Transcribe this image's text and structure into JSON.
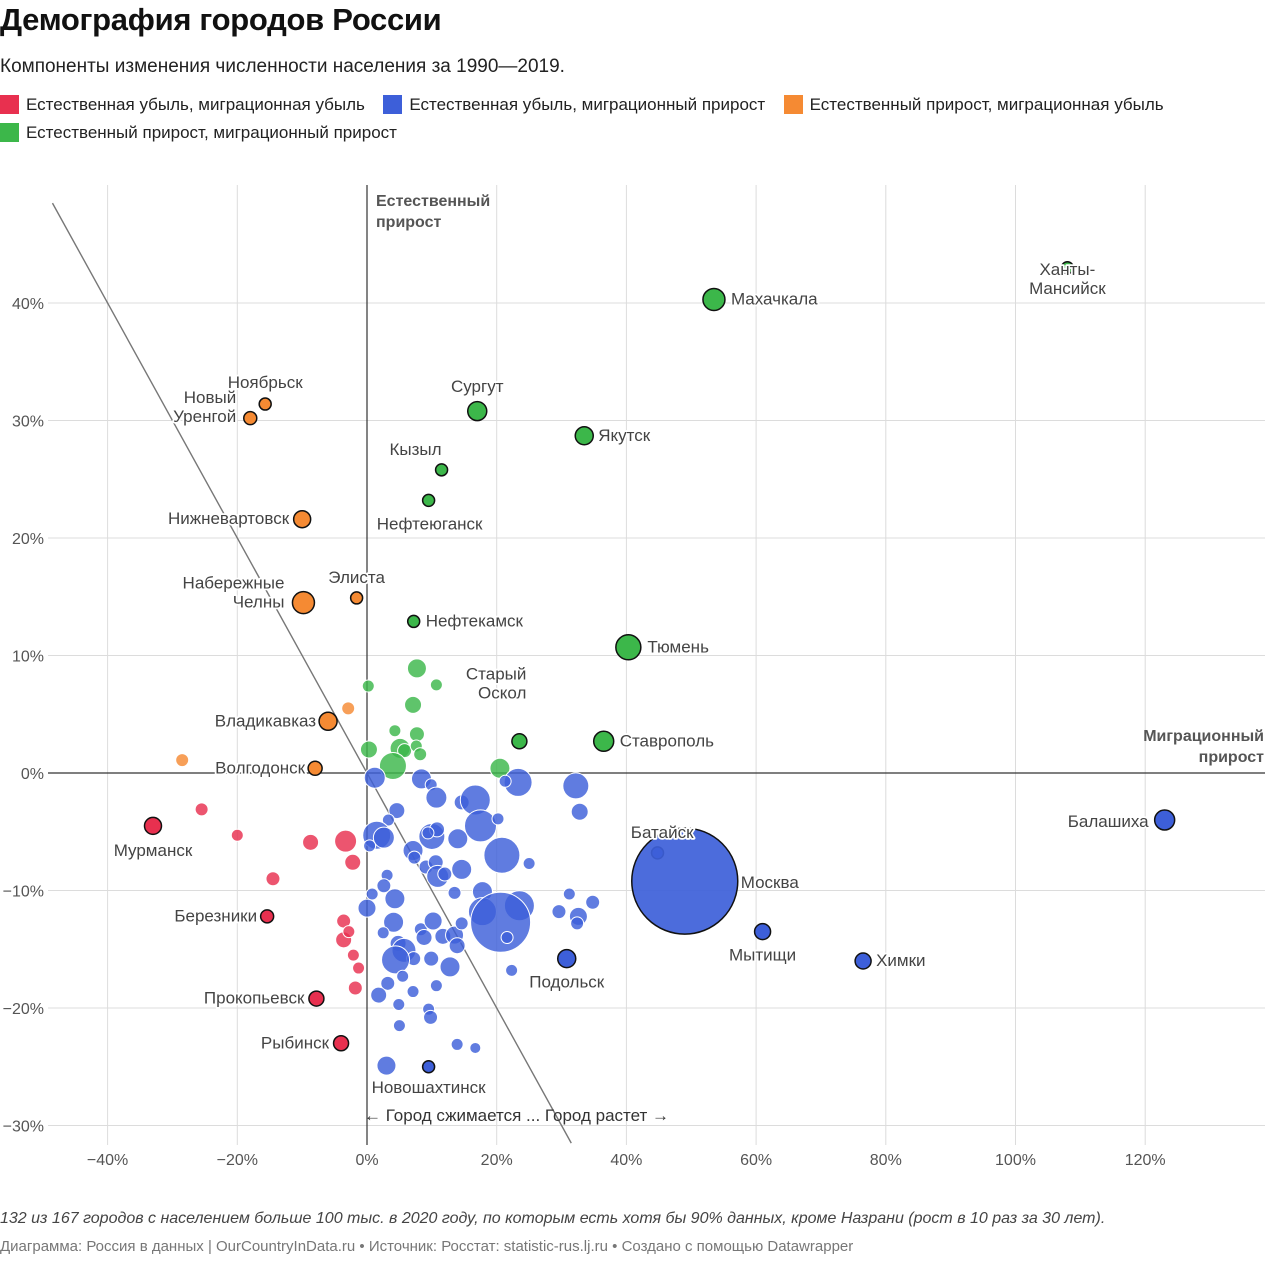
{
  "header": {
    "title": "Демография городов России",
    "subtitle": "Компоненты изменения численности населения за 1990—2019."
  },
  "legend": [
    {
      "label": "Естественная убыль, миграционная убыль",
      "color": "#e8304f"
    },
    {
      "label": "Естественная убыль, миграционный прирост",
      "color": "#3d5fd9"
    },
    {
      "label": "Естественный прирост, миграционная убыль",
      "color": "#f58a33"
    },
    {
      "label": "Естественный прирост, миграционный прирост",
      "color": "#3cb74a"
    }
  ],
  "footer": {
    "note": "132 из 167 городов с населением больше 100 тыс. в 2020 году, по которым есть хотя бы 90% данных, кроме Назрани (рост в 10 раз за 30 лет).",
    "credits": "Диаграмма: Россия в данных | OurCountryInData.ru • Источник: Росстат: statistic-rus.lj.ru • Создано с помощью Datawrapper"
  },
  "chart_data": {
    "type": "scatter",
    "xlim": [
      -48,
      138
    ],
    "ylim": [
      -32,
      49
    ],
    "xticks": [
      -40,
      -20,
      0,
      20,
      40,
      60,
      80,
      100,
      120
    ],
    "xtick_labels": [
      "−40%",
      "−20%",
      "0%",
      "20%",
      "40%",
      "60%",
      "80%",
      "100%",
      "120%"
    ],
    "yticks": [
      40,
      30,
      20,
      10,
      0,
      -10,
      -20,
      -30
    ],
    "ytick_labels": [
      "40%",
      "30%",
      "20%",
      "10%",
      "0%",
      "−10%",
      "−20%",
      "−30%"
    ],
    "grid": true,
    "axis_titles": {
      "y_axis": [
        "Естественный",
        "прирост"
      ],
      "x_axis": [
        "Миграционный",
        "прирост"
      ]
    },
    "annotation": "← Город сжимается ... Город растет →",
    "zero_growth_line": [
      [
        -48.5,
        48.5
      ],
      [
        31.5,
        -31.5
      ]
    ],
    "series_colors": {
      "red": "#e8304f",
      "blue": "#3d5fd9",
      "orange": "#f58a33",
      "green": "#3cb74a"
    },
    "labeled_points": [
      {
        "label": "Ханты-\nМансийск",
        "x": 108,
        "y": 43,
        "r": 6,
        "cat": "green",
        "anchor": "middle",
        "lx": 0,
        "ly": 26
      },
      {
        "label": "Махачкала",
        "x": 53.5,
        "y": 40.3,
        "r": 11,
        "cat": "green",
        "anchor": "start",
        "lx": 17,
        "ly": 5
      },
      {
        "label": "Сургут",
        "x": 17,
        "y": 30.8,
        "r": 9.5,
        "cat": "green",
        "anchor": "middle",
        "lx": 0,
        "ly": -19
      },
      {
        "label": "Якутск",
        "x": 33.5,
        "y": 28.7,
        "r": 9,
        "cat": "green",
        "anchor": "start",
        "lx": 14,
        "ly": 5
      },
      {
        "label": "Кызыл",
        "x": 11.5,
        "y": 25.8,
        "r": 6,
        "cat": "green",
        "anchor": "end",
        "lx": 0,
        "ly": -15
      },
      {
        "label": "Нефтеюганск",
        "x": 9.5,
        "y": 23.2,
        "r": 6,
        "cat": "green",
        "anchor": "middle",
        "lx": 1,
        "ly": 29
      },
      {
        "label": "Нефтекамск",
        "x": 7.2,
        "y": 12.9,
        "r": 6,
        "cat": "green",
        "anchor": "start",
        "lx": 12,
        "ly": 5
      },
      {
        "label": "Тюмень",
        "x": 40.3,
        "y": 10.7,
        "r": 12.5,
        "cat": "green",
        "anchor": "start",
        "lx": 19,
        "ly": 5
      },
      {
        "label": "Старый\nОскол",
        "x": 23.5,
        "y": 2.7,
        "r": 7.5,
        "cat": "green",
        "anchor": "end",
        "lx": 7,
        "ly": -43
      },
      {
        "label": "Ставрополь",
        "x": 36.5,
        "y": 2.7,
        "r": 10,
        "cat": "green",
        "anchor": "start",
        "lx": 16,
        "ly": 5
      },
      {
        "label": "Ноябрьск",
        "x": -15.7,
        "y": 31.4,
        "r": 6,
        "cat": "orange",
        "anchor": "middle",
        "lx": 0,
        "ly": -16
      },
      {
        "label": "Новый\nУренгой",
        "x": -18,
        "y": 30.2,
        "r": 6.5,
        "cat": "orange",
        "anchor": "end",
        "lx": -14,
        "ly": 4
      },
      {
        "label": "Нижневартовск",
        "x": -10,
        "y": 21.6,
        "r": 8.5,
        "cat": "orange",
        "anchor": "end",
        "lx": -13,
        "ly": 5
      },
      {
        "label": "Элиста",
        "x": -1.6,
        "y": 14.9,
        "r": 6,
        "cat": "orange",
        "anchor": "middle",
        "lx": 0,
        "ly": -15
      },
      {
        "label": "Набережные\nЧелны",
        "x": -9.8,
        "y": 14.5,
        "r": 11,
        "cat": "orange",
        "anchor": "end",
        "lx": -19,
        "ly": 5
      },
      {
        "label": "Владикавказ",
        "x": -6,
        "y": 4.4,
        "r": 9,
        "cat": "orange",
        "anchor": "end",
        "lx": -12,
        "ly": 5
      },
      {
        "label": "Волгодонск",
        "x": -8,
        "y": 0.4,
        "r": 7,
        "cat": "orange",
        "anchor": "end",
        "lx": -10,
        "ly": 5
      },
      {
        "label": "Мурманск",
        "x": -33,
        "y": -4.5,
        "r": 8.5,
        "cat": "red",
        "anchor": "middle",
        "lx": 0,
        "ly": 30
      },
      {
        "label": "Березники",
        "x": -15.4,
        "y": -12.2,
        "r": 6.5,
        "cat": "red",
        "anchor": "end",
        "lx": -10,
        "ly": 5
      },
      {
        "label": "Прокопьевск",
        "x": -7.8,
        "y": -19.2,
        "r": 7.5,
        "cat": "red",
        "anchor": "end",
        "lx": -12,
        "ly": 5
      },
      {
        "label": "Рыбинск",
        "x": -4,
        "y": -23,
        "r": 7.5,
        "cat": "red",
        "anchor": "end",
        "lx": -12,
        "ly": 5
      },
      {
        "label": "Батайск",
        "x": 44.8,
        "y": -6.8,
        "r": 6,
        "cat": "blue",
        "anchor": "end",
        "lx": 36,
        "ly": -15
      },
      {
        "label": "Москва",
        "x": 49,
        "y": -9.2,
        "r": 53,
        "cat": "blue",
        "anchor": "start",
        "lx": 56,
        "ly": 7
      },
      {
        "label": "Балашиха",
        "x": 123,
        "y": -4,
        "r": 10,
        "cat": "blue",
        "anchor": "end",
        "lx": -16,
        "ly": 7
      },
      {
        "label": "Мытищи",
        "x": 61,
        "y": -13.5,
        "r": 8,
        "cat": "blue",
        "anchor": "middle",
        "lx": 0,
        "ly": 29
      },
      {
        "label": "Химки",
        "x": 76.5,
        "y": -16,
        "r": 8,
        "cat": "blue",
        "anchor": "start",
        "lx": 13,
        "ly": 5
      },
      {
        "label": "Подольск",
        "x": 30.8,
        "y": -15.8,
        "r": 9,
        "cat": "blue",
        "anchor": "middle",
        "lx": 0,
        "ly": 29
      },
      {
        "label": "Новошахтинск",
        "x": 9.5,
        "y": -25,
        "r": 6,
        "cat": "blue",
        "anchor": "middle",
        "lx": 0,
        "ly": 26
      }
    ],
    "points": [
      {
        "x": -25.5,
        "y": -3.1,
        "r": 6.5,
        "cat": "red"
      },
      {
        "x": -20,
        "y": -5.3,
        "r": 6,
        "cat": "red"
      },
      {
        "x": -14.5,
        "y": -9,
        "r": 7,
        "cat": "red"
      },
      {
        "x": -8.7,
        "y": -5.9,
        "r": 8,
        "cat": "red"
      },
      {
        "x": -3.3,
        "y": -5.8,
        "r": 11,
        "cat": "red"
      },
      {
        "x": -2.2,
        "y": -7.6,
        "r": 8,
        "cat": "red"
      },
      {
        "x": -3.6,
        "y": -12.6,
        "r": 7,
        "cat": "red"
      },
      {
        "x": -3.6,
        "y": -14.2,
        "r": 8,
        "cat": "red"
      },
      {
        "x": -2.8,
        "y": -13.5,
        "r": 6,
        "cat": "red"
      },
      {
        "x": -2.1,
        "y": -15.5,
        "r": 6,
        "cat": "red"
      },
      {
        "x": -1.3,
        "y": -16.6,
        "r": 6,
        "cat": "red"
      },
      {
        "x": -1.8,
        "y": -18.3,
        "r": 7,
        "cat": "red"
      },
      {
        "x": -28.5,
        "y": 1.1,
        "r": 6.5,
        "cat": "orange"
      },
      {
        "x": -2.9,
        "y": 5.5,
        "r": 6.5,
        "cat": "orange"
      },
      {
        "x": 0.2,
        "y": 7.4,
        "r": 6,
        "cat": "green"
      },
      {
        "x": 7.7,
        "y": 8.9,
        "r": 9.5,
        "cat": "green"
      },
      {
        "x": 10.7,
        "y": 7.5,
        "r": 6,
        "cat": "green"
      },
      {
        "x": 7.1,
        "y": 5.8,
        "r": 8.5,
        "cat": "green"
      },
      {
        "x": 4.3,
        "y": 3.6,
        "r": 6,
        "cat": "green"
      },
      {
        "x": 7.7,
        "y": 3.3,
        "r": 7.5,
        "cat": "green"
      },
      {
        "x": 0.3,
        "y": 2,
        "r": 8.5,
        "cat": "green"
      },
      {
        "x": 5.1,
        "y": 2.1,
        "r": 10,
        "cat": "green"
      },
      {
        "x": 5.8,
        "y": 1.9,
        "r": 7,
        "cat": "green"
      },
      {
        "x": 7.6,
        "y": 2.3,
        "r": 6,
        "cat": "green"
      },
      {
        "x": 8.2,
        "y": 1.6,
        "r": 6.5,
        "cat": "green"
      },
      {
        "x": 4,
        "y": 0.6,
        "r": 13.5,
        "cat": "green"
      },
      {
        "x": 20.5,
        "y": 0.4,
        "r": 10,
        "cat": "green"
      },
      {
        "x": 1.2,
        "y": -0.4,
        "r": 10.5,
        "cat": "blue"
      },
      {
        "x": 8.4,
        "y": -0.5,
        "r": 10,
        "cat": "blue"
      },
      {
        "x": 9.9,
        "y": -1,
        "r": 6,
        "cat": "blue"
      },
      {
        "x": 10.7,
        "y": -2.1,
        "r": 10.5,
        "cat": "blue"
      },
      {
        "x": 14.6,
        "y": -2.5,
        "r": 7.5,
        "cat": "blue"
      },
      {
        "x": 16.7,
        "y": -2.3,
        "r": 15,
        "cat": "blue"
      },
      {
        "x": 23.3,
        "y": -0.8,
        "r": 14,
        "cat": "blue"
      },
      {
        "x": 21.3,
        "y": -0.7,
        "r": 6,
        "cat": "blue"
      },
      {
        "x": 32.2,
        "y": -1.1,
        "r": 13,
        "cat": "blue"
      },
      {
        "x": 32.8,
        "y": -3.3,
        "r": 8.5,
        "cat": "blue"
      },
      {
        "x": 4.6,
        "y": -3.2,
        "r": 8,
        "cat": "blue"
      },
      {
        "x": 3.3,
        "y": -4,
        "r": 6,
        "cat": "blue"
      },
      {
        "x": 1.5,
        "y": -5.3,
        "r": 14,
        "cat": "blue"
      },
      {
        "x": 2.6,
        "y": -5.5,
        "r": 10.5,
        "cat": "blue"
      },
      {
        "x": 0.4,
        "y": -6.2,
        "r": 6,
        "cat": "blue"
      },
      {
        "x": 10,
        "y": -5.4,
        "r": 13,
        "cat": "blue"
      },
      {
        "x": 10.8,
        "y": -4.8,
        "r": 7.5,
        "cat": "blue"
      },
      {
        "x": 9.4,
        "y": -5.1,
        "r": 6,
        "cat": "blue"
      },
      {
        "x": 7.1,
        "y": -6.6,
        "r": 10,
        "cat": "blue"
      },
      {
        "x": 7.3,
        "y": -7.2,
        "r": 6.5,
        "cat": "blue"
      },
      {
        "x": 14,
        "y": -5.6,
        "r": 10,
        "cat": "blue"
      },
      {
        "x": 17.5,
        "y": -4.5,
        "r": 16,
        "cat": "blue"
      },
      {
        "x": 20.2,
        "y": -3.9,
        "r": 6,
        "cat": "blue"
      },
      {
        "x": 20.8,
        "y": -7,
        "r": 18,
        "cat": "blue"
      },
      {
        "x": 25,
        "y": -7.7,
        "r": 6,
        "cat": "blue"
      },
      {
        "x": 9.1,
        "y": -8,
        "r": 7,
        "cat": "blue"
      },
      {
        "x": 10.6,
        "y": -7.6,
        "r": 7.5,
        "cat": "blue"
      },
      {
        "x": 10.9,
        "y": -8.8,
        "r": 11,
        "cat": "blue"
      },
      {
        "x": 12,
        "y": -8.6,
        "r": 7,
        "cat": "blue"
      },
      {
        "x": 14.6,
        "y": -8.2,
        "r": 10,
        "cat": "blue"
      },
      {
        "x": 3.1,
        "y": -8.7,
        "r": 6,
        "cat": "blue"
      },
      {
        "x": 2.6,
        "y": -9.6,
        "r": 7,
        "cat": "blue"
      },
      {
        "x": 0.8,
        "y": -10.3,
        "r": 6,
        "cat": "blue"
      },
      {
        "x": 4.3,
        "y": -10.7,
        "r": 10,
        "cat": "blue"
      },
      {
        "x": 13.5,
        "y": -10.2,
        "r": 6.5,
        "cat": "blue"
      },
      {
        "x": 17.8,
        "y": -10.1,
        "r": 10,
        "cat": "blue"
      },
      {
        "x": 0,
        "y": -11.5,
        "r": 9,
        "cat": "blue"
      },
      {
        "x": 17.8,
        "y": -11.8,
        "r": 14,
        "cat": "blue"
      },
      {
        "x": 23.5,
        "y": -11.3,
        "r": 15,
        "cat": "blue"
      },
      {
        "x": 20.6,
        "y": -12.7,
        "r": 30,
        "cat": "blue"
      },
      {
        "x": 29.6,
        "y": -11.8,
        "r": 7,
        "cat": "blue"
      },
      {
        "x": 31.2,
        "y": -10.3,
        "r": 6,
        "cat": "blue"
      },
      {
        "x": 32.6,
        "y": -12.2,
        "r": 9,
        "cat": "blue"
      },
      {
        "x": 32.4,
        "y": -12.8,
        "r": 6.5,
        "cat": "blue"
      },
      {
        "x": 34.8,
        "y": -11,
        "r": 7,
        "cat": "blue"
      },
      {
        "x": 4.1,
        "y": -12.7,
        "r": 10,
        "cat": "blue"
      },
      {
        "x": 2.5,
        "y": -13.6,
        "r": 6,
        "cat": "blue"
      },
      {
        "x": 8.3,
        "y": -13.3,
        "r": 6.5,
        "cat": "blue"
      },
      {
        "x": 10.2,
        "y": -12.6,
        "r": 9,
        "cat": "blue"
      },
      {
        "x": 11.7,
        "y": -13.9,
        "r": 8,
        "cat": "blue"
      },
      {
        "x": 13.5,
        "y": -13.8,
        "r": 9,
        "cat": "blue"
      },
      {
        "x": 14.6,
        "y": -12.8,
        "r": 6.5,
        "cat": "blue"
      },
      {
        "x": 21.6,
        "y": -14,
        "r": 6,
        "cat": "blue"
      },
      {
        "x": 4.8,
        "y": -14.5,
        "r": 8,
        "cat": "blue"
      },
      {
        "x": 8.8,
        "y": -14,
        "r": 8,
        "cat": "blue"
      },
      {
        "x": 13.9,
        "y": -14.7,
        "r": 8,
        "cat": "blue"
      },
      {
        "x": 5.7,
        "y": -15.1,
        "r": 12,
        "cat": "blue"
      },
      {
        "x": 7.2,
        "y": -15.8,
        "r": 7,
        "cat": "blue"
      },
      {
        "x": 9.9,
        "y": -15.8,
        "r": 7.5,
        "cat": "blue"
      },
      {
        "x": 4.4,
        "y": -15.9,
        "r": 14,
        "cat": "blue"
      },
      {
        "x": 12.8,
        "y": -16.5,
        "r": 10,
        "cat": "blue"
      },
      {
        "x": 5.5,
        "y": -17.3,
        "r": 6,
        "cat": "blue"
      },
      {
        "x": 22.3,
        "y": -16.8,
        "r": 6,
        "cat": "blue"
      },
      {
        "x": 3.2,
        "y": -17.9,
        "r": 7,
        "cat": "blue"
      },
      {
        "x": 10.7,
        "y": -18.1,
        "r": 6,
        "cat": "blue"
      },
      {
        "x": 1.8,
        "y": -18.9,
        "r": 8,
        "cat": "blue"
      },
      {
        "x": 7.1,
        "y": -18.6,
        "r": 6,
        "cat": "blue"
      },
      {
        "x": 4.9,
        "y": -19.7,
        "r": 6,
        "cat": "blue"
      },
      {
        "x": 9.5,
        "y": -20.1,
        "r": 6,
        "cat": "blue"
      },
      {
        "x": 9.8,
        "y": -20.8,
        "r": 7,
        "cat": "blue"
      },
      {
        "x": 5,
        "y": -21.5,
        "r": 6,
        "cat": "blue"
      },
      {
        "x": 13.9,
        "y": -23.1,
        "r": 6,
        "cat": "blue"
      },
      {
        "x": 16.7,
        "y": -23.4,
        "r": 5.5,
        "cat": "blue"
      },
      {
        "x": 3,
        "y": -24.9,
        "r": 9.5,
        "cat": "blue"
      }
    ]
  }
}
